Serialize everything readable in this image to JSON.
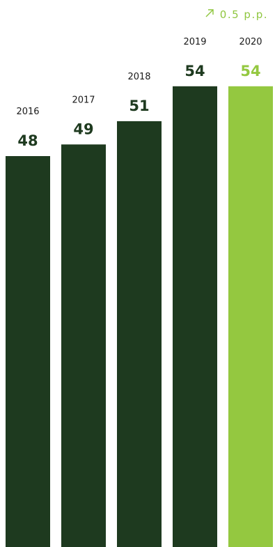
{
  "change_indicator": {
    "icon": "arrow-up-right-icon",
    "text": "0.5 p.p."
  },
  "colors": {
    "bar_default": "#1e3a1f",
    "bar_highlight": "#94c840",
    "value_default": "#1e3a1f",
    "value_highlight": "#94c840",
    "indicator": "#8fc63f"
  },
  "chart_data": {
    "type": "bar",
    "categories": [
      "2016",
      "2017",
      "2018",
      "2019",
      "2020"
    ],
    "values": [
      48,
      49,
      51,
      54,
      54
    ],
    "value_labels": [
      "48",
      "49",
      "51",
      "54",
      "54"
    ],
    "highlight_index": 4,
    "title": "",
    "xlabel": "",
    "ylabel": "",
    "grid": false,
    "legend": "none"
  }
}
